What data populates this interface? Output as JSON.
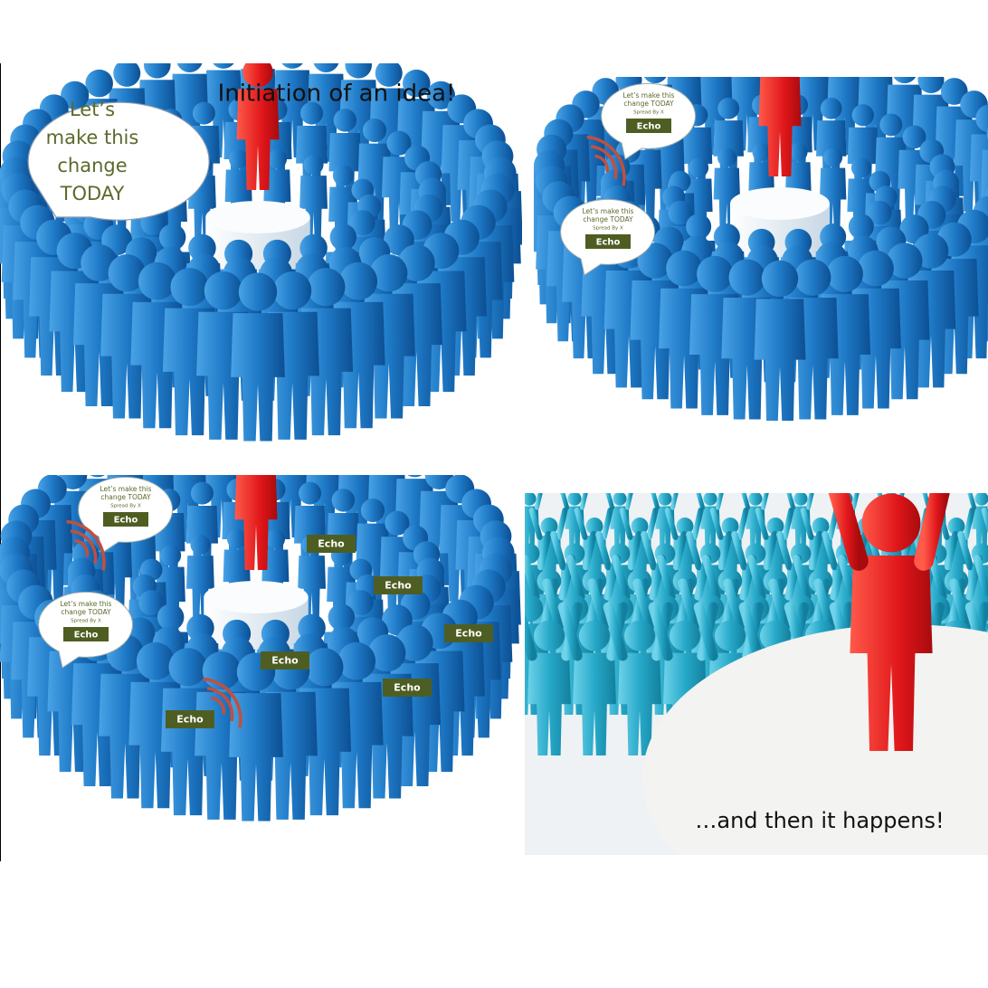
{
  "panels": [
    {
      "caption": "Initiation of an idea!",
      "bubbles": [
        {
          "lines": [
            "Let’s",
            "make this",
            "change",
            "TODAY"
          ]
        }
      ]
    },
    {
      "bubbles": [
        {
          "lines": [
            "Let’s  make this",
            "change TODAY"
          ],
          "byline": "Spread By X",
          "button": "Echo"
        },
        {
          "lines": [
            "Let’s  make this",
            "change TODAY"
          ],
          "byline": "Spread By X",
          "button": "Echo"
        }
      ]
    },
    {
      "bubbles": [
        {
          "lines": [
            "Let’s  make this",
            "change TODAY"
          ],
          "byline": "Spread By X",
          "button": "Echo"
        },
        {
          "lines": [
            "Let’s  make this",
            "change TODAY"
          ],
          "byline": "Spread By X",
          "button": "Echo"
        }
      ],
      "echo_tags": [
        "Echo",
        "Echo",
        "Echo",
        "Echo",
        "Echo",
        "Echo"
      ]
    },
    {
      "caption": "…and then it happens!"
    }
  ]
}
